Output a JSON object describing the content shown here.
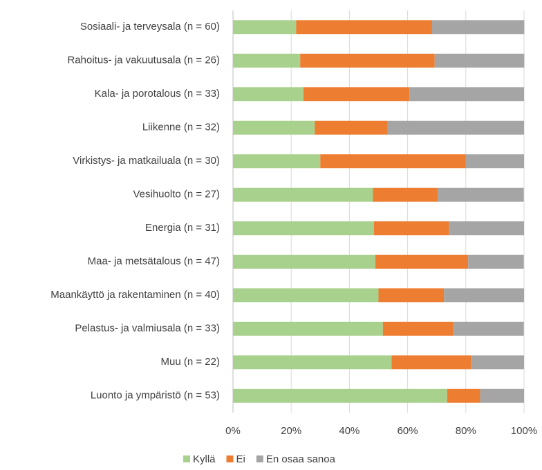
{
  "chart_data": {
    "type": "stacked_bar_horizontal",
    "categories": [
      "Sosiaali- ja terveysala (n = 60)",
      "Rahoitus- ja vakuutusala (n = 26)",
      "Kala- ja porotalous (n = 33)",
      "Liikenne (n = 32)",
      "Virkistys- ja matkailuala (n = 30)",
      "Vesihuolto (n = 27)",
      "Energia (n = 31)",
      "Maa- ja metsätalous (n = 47)",
      "Maankäyttö ja rakentaminen (n = 40)",
      "Pelastus- ja valmiusala (n = 33)",
      "Muu (n = 22)",
      "Luonto ja ympäristö (n = 53)"
    ],
    "series": [
      {
        "name": "Kyllä",
        "color": "#a9d18e",
        "values": [
          21.7,
          23.1,
          24.2,
          28.1,
          30,
          48.1,
          48.4,
          48.9,
          50,
          51.5,
          54.5,
          73.6
        ]
      },
      {
        "name": "Ei",
        "color": "#ed7d31",
        "values": [
          46.7,
          46.2,
          36.4,
          25,
          50,
          22.2,
          25.8,
          31.9,
          22.5,
          24.2,
          27.3,
          11.3
        ]
      },
      {
        "name": "En osaa sanoa",
        "color": "#a5a5a5",
        "values": [
          31.7,
          30.8,
          39.4,
          46.9,
          20,
          29.6,
          25.8,
          19.1,
          27.5,
          24.2,
          18.2,
          15.1
        ]
      }
    ],
    "xlim": [
      0,
      100
    ],
    "xticks": [
      {
        "value": 0,
        "label": "0%"
      },
      {
        "value": 20,
        "label": "20%"
      },
      {
        "value": 40,
        "label": "40%"
      },
      {
        "value": 60,
        "label": "60%"
      },
      {
        "value": 80,
        "label": "80%"
      },
      {
        "value": 100,
        "label": "100%"
      }
    ],
    "grid": true,
    "legend": "bottom"
  }
}
